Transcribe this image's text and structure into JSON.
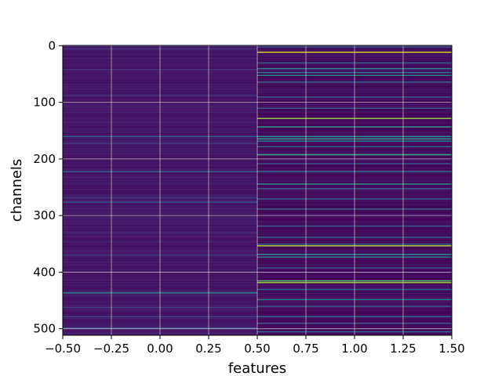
{
  "chart_data": {
    "type": "heatmap",
    "title": "",
    "xlabel": "features",
    "ylabel": "channels",
    "n_rows": 512,
    "n_columns": 2,
    "x_centers": [
      0,
      1
    ],
    "xlim": [
      -0.5,
      1.5
    ],
    "ylim": [
      511.5,
      -0.5
    ],
    "y_inverted": true,
    "grid": true,
    "colormap": "viridis",
    "value_range": [
      0,
      1
    ],
    "x_ticks": [
      {
        "value": -0.5,
        "label": "−0.50"
      },
      {
        "value": -0.25,
        "label": "−0.25"
      },
      {
        "value": 0.0,
        "label": "0.00"
      },
      {
        "value": 0.25,
        "label": "0.25"
      },
      {
        "value": 0.5,
        "label": "0.50"
      },
      {
        "value": 0.75,
        "label": "0.75"
      },
      {
        "value": 1.0,
        "label": "1.00"
      },
      {
        "value": 1.25,
        "label": "1.25"
      },
      {
        "value": 1.5,
        "label": "1.50"
      }
    ],
    "y_ticks": [
      {
        "value": 0,
        "label": "0"
      },
      {
        "value": 100,
        "label": "100"
      },
      {
        "value": 200,
        "label": "200"
      },
      {
        "value": 300,
        "label": "300"
      },
      {
        "value": 400,
        "label": "400"
      },
      {
        "value": 500,
        "label": "500"
      }
    ],
    "column_background": [
      0.07,
      0.03
    ],
    "highlight_rows": {
      "feature_0": [
        {
          "row": 5,
          "value": 0.2
        },
        {
          "row": 42,
          "value": 0.18
        },
        {
          "row": 88,
          "value": 0.16
        },
        {
          "row": 160,
          "value": 0.32
        },
        {
          "row": 172,
          "value": 0.2
        },
        {
          "row": 222,
          "value": 0.35
        },
        {
          "row": 268,
          "value": 0.22
        },
        {
          "row": 276,
          "value": 0.3
        },
        {
          "row": 330,
          "value": 0.16
        },
        {
          "row": 370,
          "value": 0.18
        },
        {
          "row": 436,
          "value": 0.45
        },
        {
          "row": 462,
          "value": 0.2
        },
        {
          "row": 478,
          "value": 0.22
        },
        {
          "row": 498,
          "value": 0.25
        }
      ],
      "feature_1": [
        {
          "row": 2,
          "value": 0.3
        },
        {
          "row": 11,
          "value": 0.95
        },
        {
          "row": 30,
          "value": 0.35
        },
        {
          "row": 40,
          "value": 0.45
        },
        {
          "row": 47,
          "value": 0.4
        },
        {
          "row": 52,
          "value": 0.5
        },
        {
          "row": 64,
          "value": 0.35
        },
        {
          "row": 90,
          "value": 0.3
        },
        {
          "row": 110,
          "value": 0.3
        },
        {
          "row": 128,
          "value": 0.85
        },
        {
          "row": 143,
          "value": 0.6
        },
        {
          "row": 160,
          "value": 0.55
        },
        {
          "row": 164,
          "value": 0.6
        },
        {
          "row": 168,
          "value": 0.45
        },
        {
          "row": 178,
          "value": 0.35
        },
        {
          "row": 192,
          "value": 0.65
        },
        {
          "row": 208,
          "value": 0.3
        },
        {
          "row": 222,
          "value": 0.4
        },
        {
          "row": 244,
          "value": 0.55
        },
        {
          "row": 252,
          "value": 0.3
        },
        {
          "row": 270,
          "value": 0.3
        },
        {
          "row": 288,
          "value": 0.35
        },
        {
          "row": 318,
          "value": 0.3
        },
        {
          "row": 338,
          "value": 0.35
        },
        {
          "row": 350,
          "value": 0.35
        },
        {
          "row": 353,
          "value": 0.9
        },
        {
          "row": 368,
          "value": 0.5
        },
        {
          "row": 373,
          "value": 0.45
        },
        {
          "row": 392,
          "value": 0.3
        },
        {
          "row": 415,
          "value": 0.75
        },
        {
          "row": 418,
          "value": 0.85
        },
        {
          "row": 430,
          "value": 0.35
        },
        {
          "row": 448,
          "value": 0.45
        },
        {
          "row": 460,
          "value": 0.3
        },
        {
          "row": 478,
          "value": 0.35
        },
        {
          "row": 490,
          "value": 0.3
        },
        {
          "row": 505,
          "value": 0.35
        }
      ]
    }
  }
}
